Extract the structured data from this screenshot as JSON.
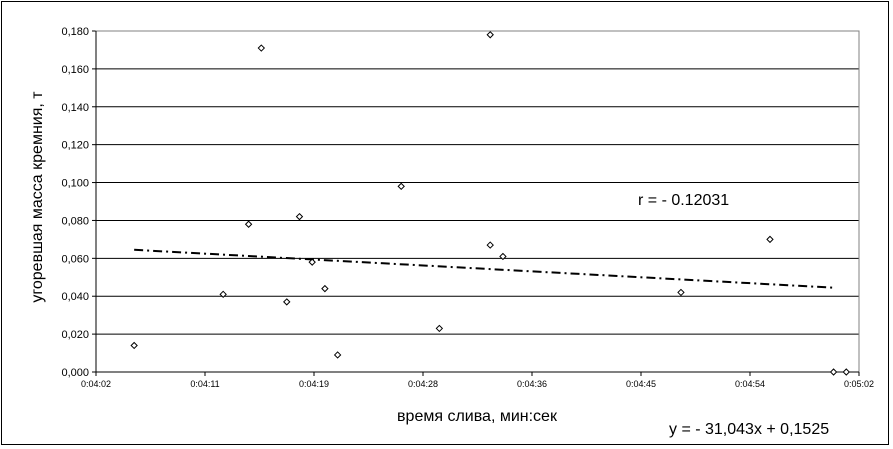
{
  "chart_data": {
    "type": "scatter",
    "title": "",
    "xlabel": "время слива, мин:сек",
    "ylabel": "угоревшая масса кремния, т",
    "xlim": [
      "0:04:02",
      "0:05:02"
    ],
    "ylim": [
      0,
      0.18
    ],
    "grid": "horizontal",
    "x_ticks": [
      "0:04:02",
      "0:04:11",
      "0:04:19",
      "0:04:28",
      "0:04:36",
      "0:04:45",
      "0:04:54",
      "0:05:02"
    ],
    "y_ticks": [
      "0,000",
      "0,020",
      "0,040",
      "0,060",
      "0,080",
      "0,100",
      "0,120",
      "0,140",
      "0,160",
      "0,180"
    ],
    "points": [
      {
        "x": "0:04:05",
        "y": 0.014
      },
      {
        "x": "0:04:12",
        "y": 0.041
      },
      {
        "x": "0:04:14",
        "y": 0.078
      },
      {
        "x": "0:04:15",
        "y": 0.171
      },
      {
        "x": "0:04:17",
        "y": 0.037
      },
      {
        "x": "0:04:18",
        "y": 0.082
      },
      {
        "x": "0:04:19",
        "y": 0.058
      },
      {
        "x": "0:04:20",
        "y": 0.044
      },
      {
        "x": "0:04:21",
        "y": 0.009
      },
      {
        "x": "0:04:26",
        "y": 0.098
      },
      {
        "x": "0:04:29",
        "y": 0.023
      },
      {
        "x": "0:04:33",
        "y": 0.178
      },
      {
        "x": "0:04:33",
        "y": 0.067
      },
      {
        "x": "0:04:34",
        "y": 0.061
      },
      {
        "x": "0:04:48",
        "y": 0.042
      },
      {
        "x": "0:04:55",
        "y": 0.07
      },
      {
        "x": "0:05:00",
        "y": 0.0
      },
      {
        "x": "0:05:01",
        "y": 0.0
      }
    ],
    "trendline": {
      "x": [
        "0:04:05",
        "0:05:00"
      ],
      "y": [
        0.0645,
        0.0445
      ],
      "style": "dash-dot"
    },
    "annotations": {
      "r": "r = - 0.12031",
      "equation": "y = - 31,043x + 0,1525"
    }
  }
}
